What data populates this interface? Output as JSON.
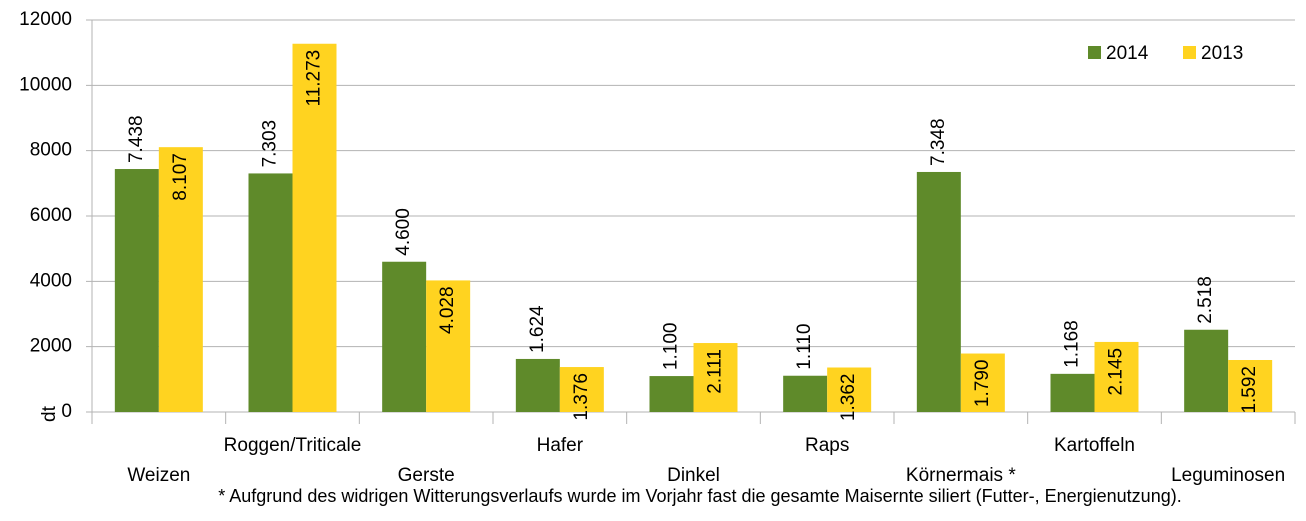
{
  "chart_data": {
    "type": "bar",
    "categories": [
      "Weizen",
      "Roggen/Triticale",
      "Gerste",
      "Hafer",
      "Dinkel",
      "Raps",
      "Körnermais *",
      "Kartoffeln",
      "Leguminosen"
    ],
    "series": [
      {
        "name": "2014",
        "color": "#5f8a2a",
        "values": [
          7438,
          7303,
          4600,
          1624,
          1100,
          1110,
          7348,
          1168,
          2518
        ],
        "value_labels": [
          "7.438",
          "7.303",
          "4.600",
          "1.624",
          "1.100",
          "1.110",
          "7.348",
          "1.168",
          "2.518"
        ]
      },
      {
        "name": "2013",
        "color": "#ffd320",
        "values": [
          8107,
          11273,
          4028,
          1376,
          2111,
          1362,
          1790,
          2145,
          1592
        ],
        "value_labels": [
          "8.107",
          "11.273",
          "4.028",
          "1.376",
          "2.111",
          "1.362",
          "1.790",
          "2.145",
          "1.592"
        ]
      }
    ],
    "y_label": "dt",
    "ylim": [
      0,
      12000
    ],
    "yticks": [
      0,
      2000,
      4000,
      6000,
      8000,
      10000,
      12000
    ],
    "grid": true,
    "legend": "top-right",
    "footnote": "* Aufgrund des widrigen Witterungsverlaufs wurde im Vorjahr fast die gesamte Maisernte siliert (Futter-, Energienutzung)."
  }
}
